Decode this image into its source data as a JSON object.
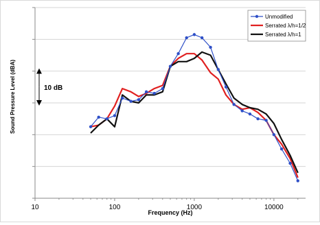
{
  "chart_data": {
    "type": "line",
    "xlabel": "Frequency  (Hz)",
    "ylabel": "Sound Pressure Level  (dBA)",
    "x_scale": "log",
    "xlim": [
      10,
      25000
    ],
    "x_ticks": [
      10,
      100,
      1000,
      10000
    ],
    "x_tick_labels": [
      "10",
      "100",
      "1000",
      "10000"
    ],
    "ylim": [
      -60,
      0
    ],
    "y_ticks": [
      -60,
      -50,
      -40,
      -30,
      -20,
      -10,
      0
    ],
    "y_tick_labels_visible": false,
    "grid": "horizontal",
    "legend_position": "top-right",
    "annotation": {
      "label": "10 dB",
      "from": -20,
      "to": -30
    },
    "x": [
      50,
      63,
      80,
      100,
      125,
      160,
      200,
      250,
      315,
      400,
      500,
      630,
      800,
      1000,
      1250,
      1600,
      2000,
      2500,
      3150,
      4000,
      5000,
      6300,
      8000,
      10000,
      12500,
      16000,
      20000
    ],
    "series": [
      {
        "name": "Unmodified",
        "color": "#2e4fc7",
        "marker": "circle",
        "values": [
          -37.5,
          -34.5,
          -35,
          -34,
          -28.5,
          -29.5,
          -29,
          -26.5,
          -27,
          -25.5,
          -18.5,
          -14.5,
          -9.5,
          -8.5,
          -9.5,
          -12.5,
          -19.5,
          -25,
          -30.5,
          -32.5,
          -33.5,
          -35,
          -35.5,
          -40,
          -44.5,
          -49,
          -54.5
        ]
      },
      {
        "name": "Serrated  λ/h=1/2",
        "color": "#e02020",
        "marker": "none",
        "values": [
          -37.5,
          -37,
          -35,
          -31,
          -25.5,
          -26.5,
          -28,
          -27,
          -25.5,
          -24.5,
          -18.5,
          -16,
          -14.5,
          -14.5,
          -16.5,
          -20.5,
          -22.5,
          -27.5,
          -30.5,
          -32,
          -31.5,
          -33,
          -35.5,
          -40,
          -43,
          -47.5,
          -53.5
        ]
      },
      {
        "name": "Serrated  λ/h=1",
        "color": "#111111",
        "marker": "none",
        "values": [
          -39.5,
          -37,
          -35,
          -37.5,
          -27.5,
          -29.5,
          -30,
          -27.5,
          -27.5,
          -26.5,
          -18.5,
          -17,
          -17,
          -16,
          -14,
          -15,
          -19.5,
          -24,
          -28.5,
          -30.5,
          -31.5,
          -32,
          -33.5,
          -36.5,
          -41.5,
          -46.5,
          -52
        ]
      }
    ]
  }
}
